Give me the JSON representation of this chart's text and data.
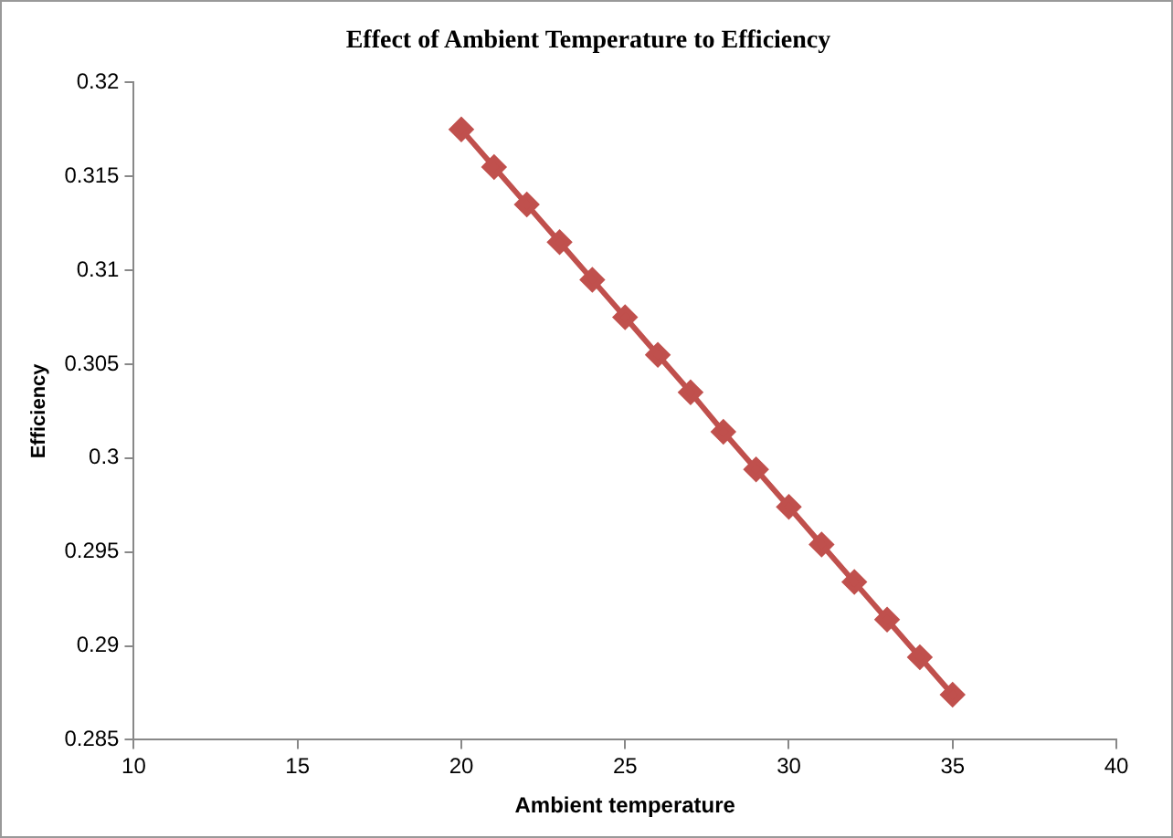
{
  "chart_data": {
    "type": "line",
    "title": "Effect of Ambient  Temperature to Efficiency",
    "xlabel": "Ambient temperature",
    "ylabel": "Efficiency",
    "x": [
      20,
      21,
      22,
      23,
      24,
      25,
      26,
      27,
      28,
      29,
      30,
      31,
      32,
      33,
      34,
      35
    ],
    "series": [
      {
        "color": "#c0504d",
        "values": [
          0.3175,
          0.3155,
          0.3135,
          0.3115,
          0.3095,
          0.3075,
          0.3055,
          0.3035,
          0.3014,
          0.2994,
          0.2974,
          0.2954,
          0.2934,
          0.2914,
          0.2894,
          0.2874
        ]
      }
    ],
    "xlim": [
      10,
      40
    ],
    "xticks": [
      10,
      15,
      20,
      25,
      30,
      35,
      40
    ],
    "ylim": [
      0.285,
      0.32
    ],
    "yticks": [
      0.285,
      0.29,
      0.295,
      0.3,
      0.305,
      0.31,
      0.315,
      0.32
    ],
    "grid": false,
    "legend": false,
    "marker": "diamond",
    "line_style": "solid"
  }
}
